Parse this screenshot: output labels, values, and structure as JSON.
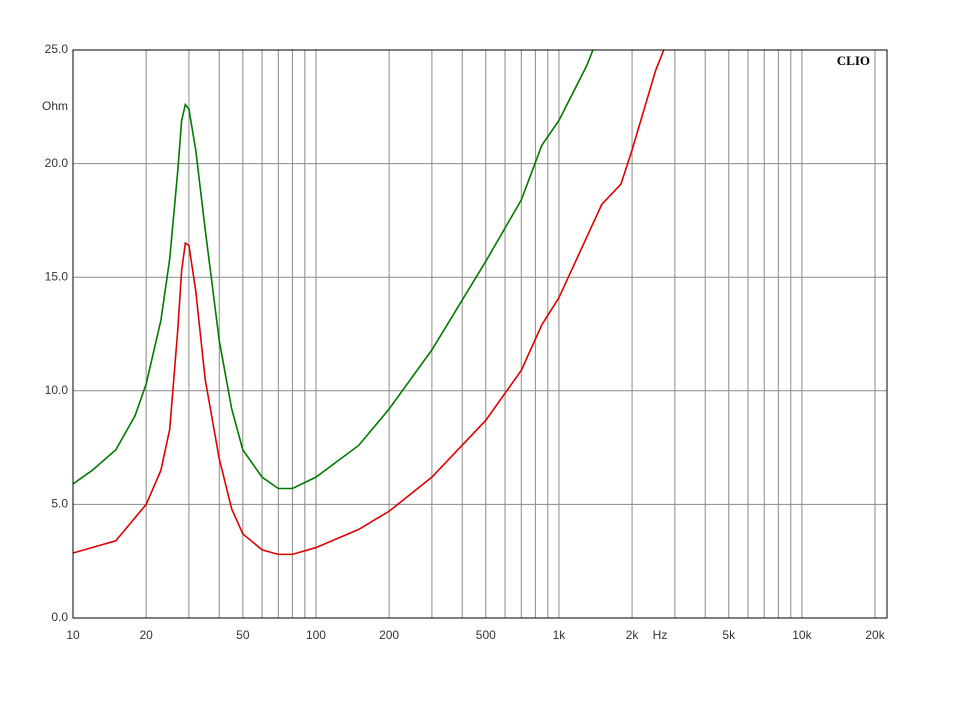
{
  "chart_data": {
    "type": "line",
    "title": "CLIO",
    "y_label": "Ohm",
    "x_label": "Hz",
    "log_x": true,
    "grid": true,
    "xlim": [
      10,
      22400
    ],
    "ylim": [
      0,
      25
    ],
    "xticks": [
      10,
      20,
      50,
      100,
      200,
      500,
      {
        "value": 1000,
        "label": "1k"
      },
      {
        "value": 2000,
        "label": "2k"
      },
      {
        "value": 5000,
        "label": "5k"
      },
      {
        "value": 10000,
        "label": "10k"
      },
      {
        "value": 20000,
        "label": "20k"
      }
    ],
    "x_minor_grid": [
      30,
      40,
      60,
      70,
      80,
      90,
      300,
      400,
      600,
      700,
      800,
      900,
      3000,
      4000,
      6000,
      7000,
      8000,
      9000
    ],
    "yticks": [
      {
        "value": 0,
        "label": "0.0"
      },
      {
        "value": 5,
        "label": "5.0"
      },
      {
        "value": 10,
        "label": "10.0"
      },
      {
        "value": 15,
        "label": "15.0"
      },
      {
        "value": 20,
        "label": "20.0"
      },
      {
        "value": 25,
        "label": "25.0"
      }
    ],
    "series": [
      {
        "color": "#007a00",
        "x": [
          10,
          12,
          15,
          18,
          20,
          23,
          25,
          27,
          28,
          29,
          30,
          32,
          35,
          40,
          45,
          50,
          60,
          70,
          80,
          100,
          150,
          200,
          300,
          500,
          700,
          850,
          1000,
          1300,
          1380
        ],
        "values": [
          5.9,
          6.5,
          7.4,
          8.9,
          10.3,
          13.1,
          15.8,
          19.7,
          21.9,
          22.6,
          22.4,
          20.6,
          17.1,
          12.2,
          9.2,
          7.4,
          6.2,
          5.7,
          5.7,
          6.2,
          7.6,
          9.2,
          11.8,
          15.7,
          18.4,
          20.8,
          21.9,
          24.3,
          25.0
        ]
      },
      {
        "color": "#e00000",
        "x": [
          10,
          15,
          20,
          23,
          25,
          27,
          28,
          29,
          30,
          32,
          35,
          40,
          45,
          50,
          60,
          70,
          80,
          100,
          150,
          200,
          300,
          500,
          700,
          850,
          1000,
          1500,
          1800,
          2000,
          2500,
          2700
        ],
        "values": [
          2.86,
          3.4,
          5.0,
          6.5,
          8.3,
          12.7,
          15.3,
          16.5,
          16.4,
          14.4,
          10.5,
          7.0,
          4.8,
          3.7,
          3.0,
          2.8,
          2.8,
          3.1,
          3.9,
          4.7,
          6.2,
          8.7,
          10.9,
          12.9,
          14.1,
          18.2,
          19.1,
          20.6,
          24.1,
          25.0
        ]
      }
    ]
  }
}
